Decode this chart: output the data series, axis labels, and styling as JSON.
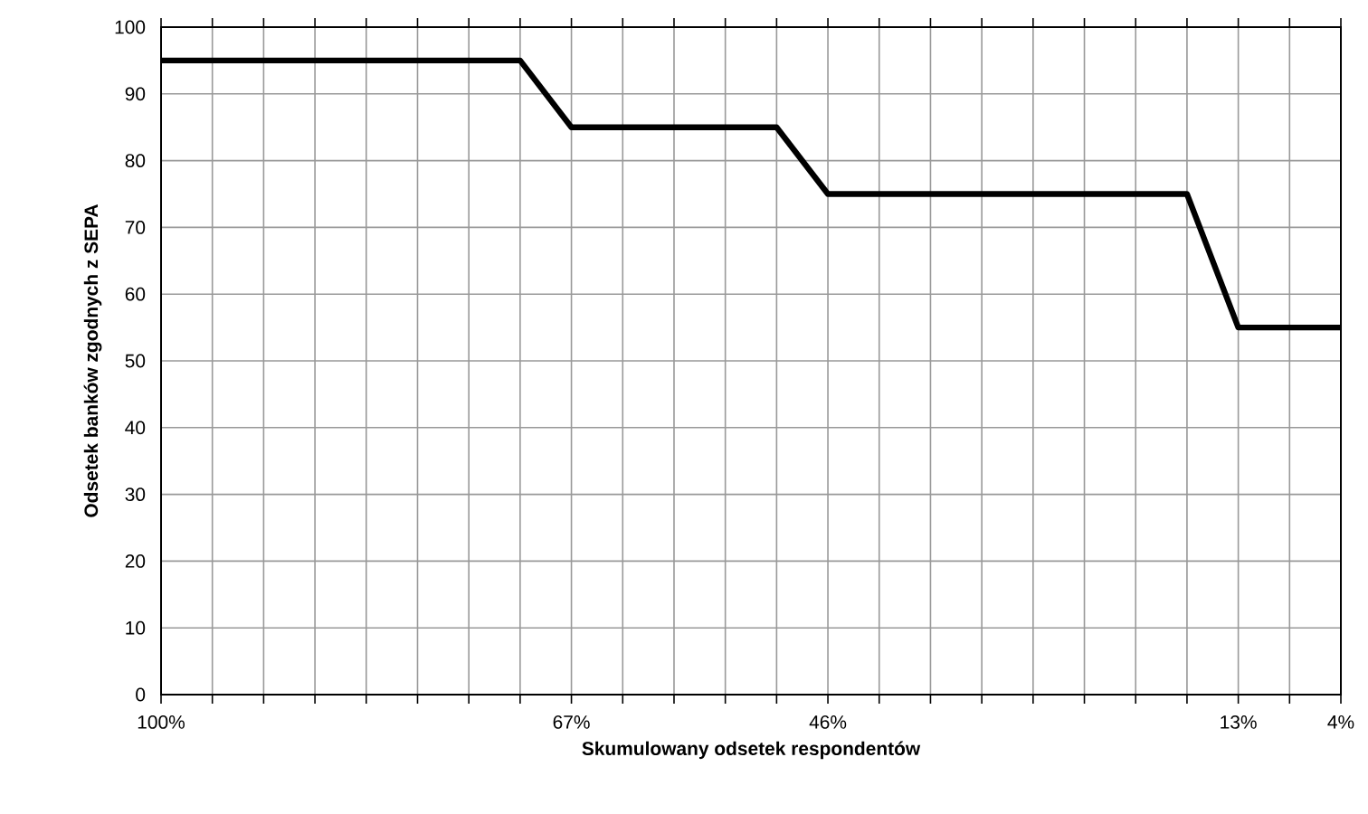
{
  "chart_data": {
    "type": "line",
    "xlabel": "Skumulowany odsetek respondentów",
    "ylabel": "Odsetek banków zgodnych z SEPA",
    "categories": [
      "100%",
      null,
      null,
      null,
      null,
      null,
      null,
      null,
      "67%",
      null,
      null,
      null,
      null,
      "46%",
      null,
      null,
      null,
      null,
      null,
      null,
      null,
      "13%",
      null,
      "4%"
    ],
    "series": [
      {
        "color": "#000000",
        "values": [
          95,
          95,
          95,
          95,
          95,
          95,
          95,
          95,
          85,
          85,
          85,
          85,
          85,
          75,
          75,
          75,
          75,
          75,
          75,
          75,
          75,
          55,
          55,
          55
        ]
      }
    ],
    "ylim": [
      0,
      100
    ],
    "yticks": [
      0,
      10,
      20,
      30,
      40,
      50,
      60,
      70,
      80,
      90,
      100
    ],
    "grid": true,
    "marker": "none",
    "line_style": "solid"
  }
}
